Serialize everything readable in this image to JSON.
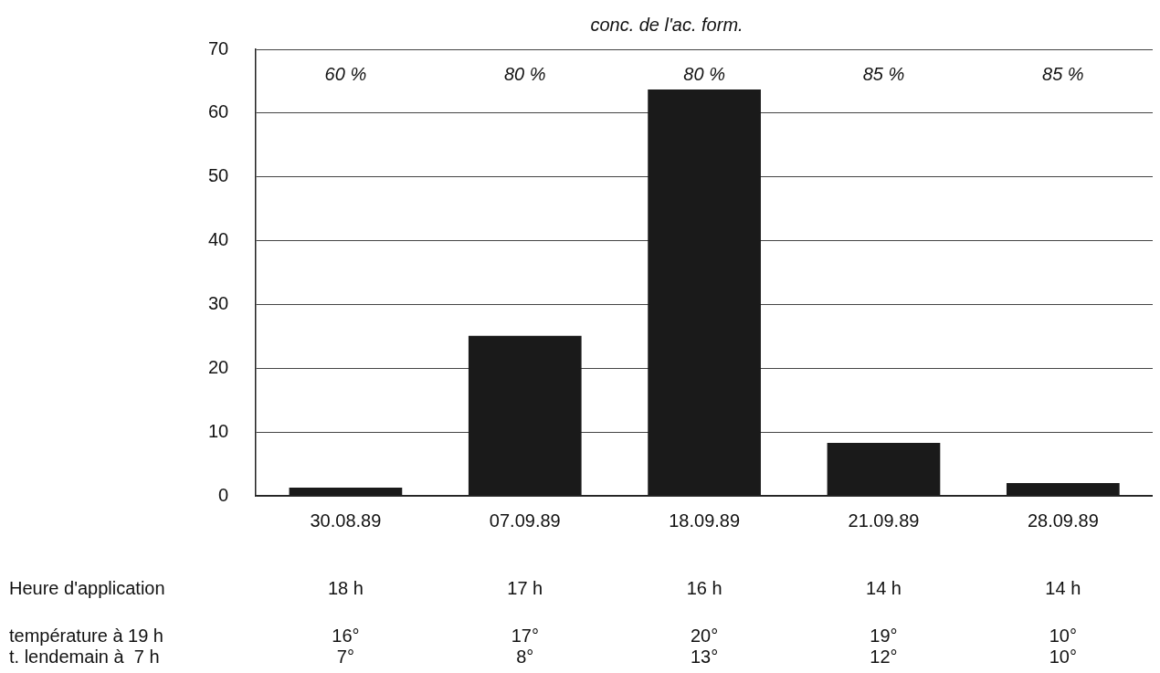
{
  "chart_data": {
    "type": "bar",
    "title": "conc. de l'ac. form.",
    "categories": [
      "30.08.89",
      "07.09.89",
      "18.09.89",
      "21.09.89",
      "28.09.89"
    ],
    "values": [
      1.3,
      25.1,
      63.7,
      8.3,
      2.0
    ],
    "color": "#1a1a1a",
    "ylim": [
      0,
      70
    ],
    "yticks": [
      0,
      10,
      20,
      30,
      40,
      50,
      60,
      70
    ],
    "grid": "y",
    "annotations": [
      "60 %",
      "80 %",
      "80 %",
      "85 %",
      "85 %",
      "Heure d'application",
      "18 h",
      "17 h",
      "16 h",
      "14 h",
      "14 h",
      "température à 19 h",
      "16°",
      "17°",
      "20°",
      "19°",
      "10°",
      "t. lendemain à  7 h",
      "7°",
      "8°",
      "13°",
      "12°",
      "10°"
    ]
  }
}
